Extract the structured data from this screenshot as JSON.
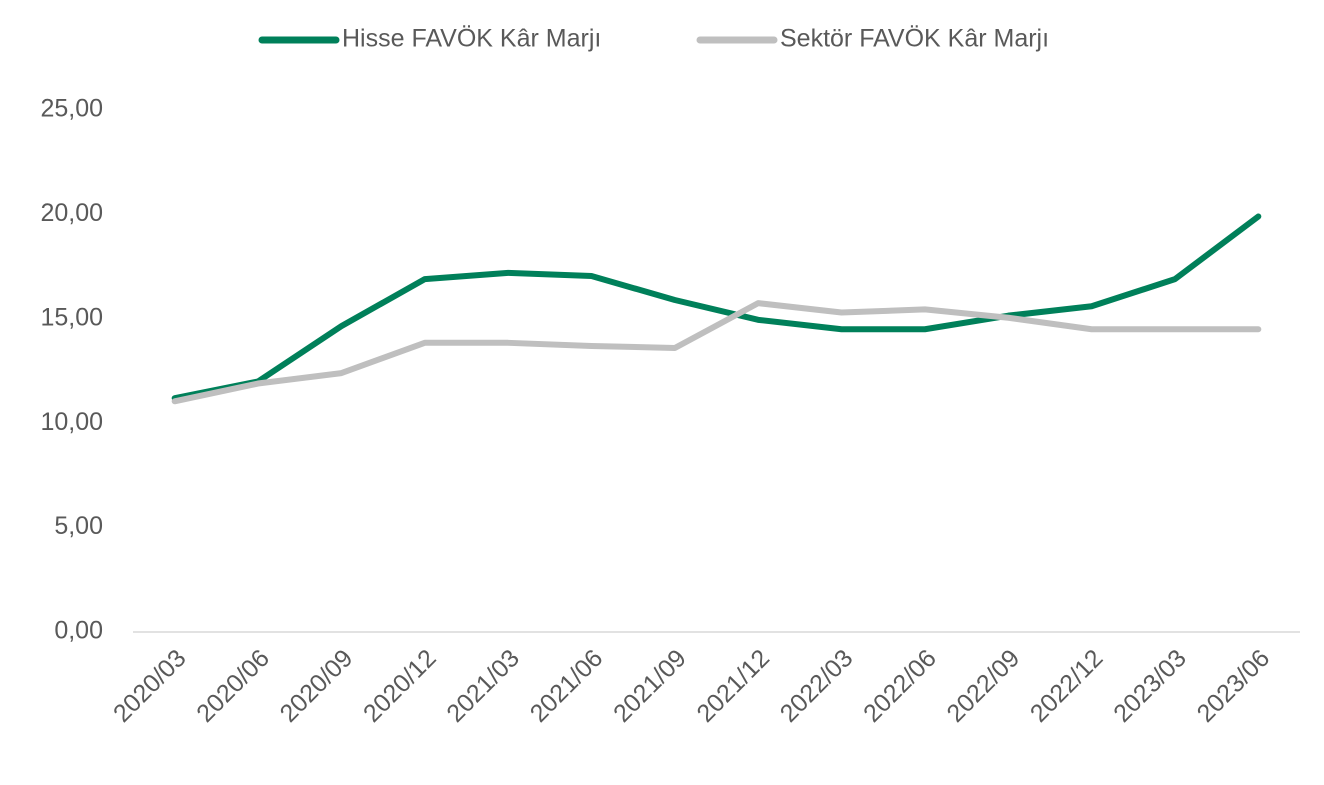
{
  "chart_data": {
    "type": "line",
    "categories": [
      "2020/03",
      "2020/06",
      "2020/09",
      "2020/12",
      "2021/03",
      "2021/06",
      "2021/09",
      "2021/12",
      "2022/03",
      "2022/06",
      "2022/09",
      "2022/12",
      "2023/03",
      "2023/06"
    ],
    "series": [
      {
        "name": "Hisse FAVÖK Kâr Marjı",
        "color": "#00805a",
        "values": [
          11.2,
          12.0,
          14.65,
          16.9,
          17.2,
          17.05,
          15.9,
          14.95,
          14.5,
          14.5,
          15.15,
          15.6,
          16.9,
          19.9
        ]
      },
      {
        "name": "Sektör FAVÖK Kâr Marjı",
        "color": "#bfbfbf",
        "values": [
          11.05,
          11.9,
          12.4,
          13.85,
          13.85,
          13.7,
          13.6,
          15.75,
          15.3,
          15.45,
          15.05,
          14.5,
          14.5,
          14.5
        ]
      }
    ],
    "ylim": [
      0,
      25
    ],
    "yticks": [
      {
        "value": 0,
        "label": "0,00"
      },
      {
        "value": 5,
        "label": "5,00"
      },
      {
        "value": 10,
        "label": "10,00"
      },
      {
        "value": 15,
        "label": "15,00"
      },
      {
        "value": 20,
        "label": "20,00"
      },
      {
        "value": 25,
        "label": "25,00"
      }
    ],
    "legend": "top",
    "grid": false
  }
}
